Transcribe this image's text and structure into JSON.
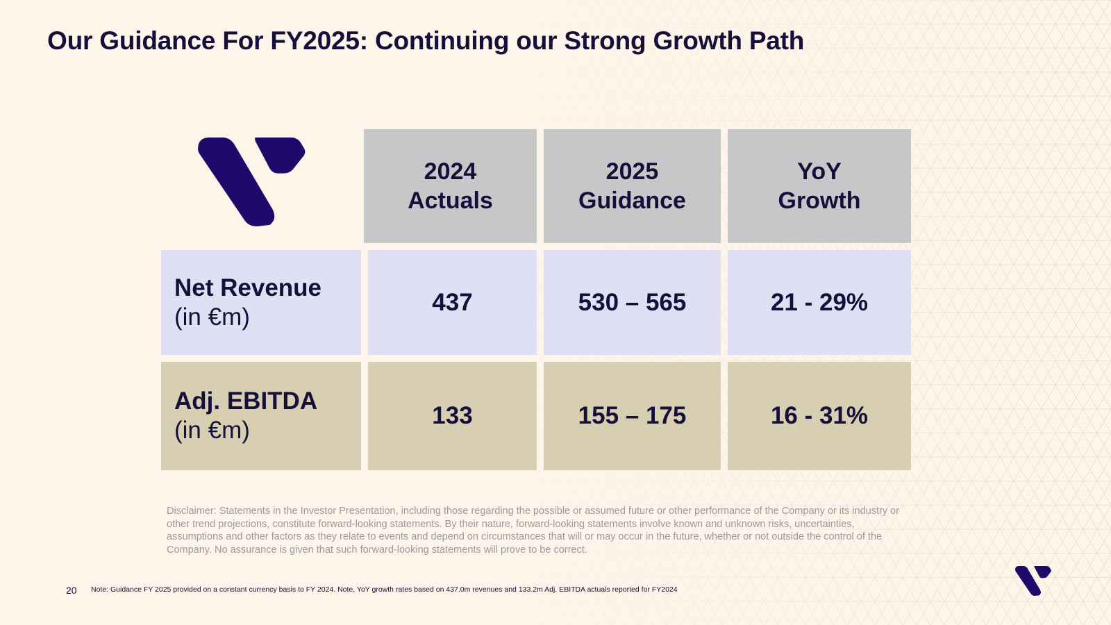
{
  "slide": {
    "title": "Our Guidance For FY2025: Continuing our Strong Growth Path",
    "page_number": "20",
    "note": "Note: Guidance FY 2025 provided on a constant currency basis to FY 2024. Note, YoY growth rates based on 437.0m revenues and 133.2m Adj. EBITDA actuals reported for FY2024",
    "disclaimer": "Disclaimer: Statements in the Investor Presentation, including those regarding the possible or assumed future or other performance of the Company or its industry or other trend projections, constitute forward-looking statements. By their nature, forward-looking statements involve known and unknown risks, uncertainties, assumptions and other factors as they relate to events and depend on circumstances that will or may occur in the future, whether or not outside the control of the Company. No assurance is given that such forward-looking statements will prove to be correct."
  },
  "table": {
    "headers": [
      {
        "line1": "2024",
        "line2": "Actuals"
      },
      {
        "line1": "2025",
        "line2": "Guidance"
      },
      {
        "line1": "YoY",
        "line2": "Growth"
      }
    ],
    "rows": [
      {
        "label": "Net Revenue",
        "unit": "(in €m)",
        "actuals": "437",
        "guidance": "530 – 565",
        "growth": "21 - 29%"
      },
      {
        "label": "Adj. EBITDA",
        "unit": "(in €m)",
        "actuals": "133",
        "guidance": "155 – 175",
        "growth": "16 - 31%"
      }
    ]
  },
  "colors": {
    "background": "#fdf4ea",
    "navy_text": "#14103a",
    "brand_purple": "#1d0a6b",
    "header_gray": "#c7c7c9",
    "revenue_row": "#e0e0f5",
    "ebitda_row": "#d8cfb2",
    "disclaimer_gray": "#9a9a9a"
  },
  "icons": {
    "brand_logo": "brand-logo-icon"
  }
}
